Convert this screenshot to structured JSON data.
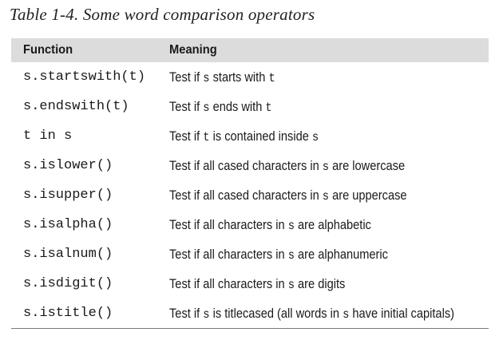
{
  "caption": "Table 1-4. Some word comparison operators",
  "table": {
    "headers": {
      "function": "Function",
      "meaning": "Meaning"
    },
    "rows": [
      {
        "function": "s.startswith(t)",
        "meaning": [
          {
            "t": "Test if "
          },
          {
            "c": "s"
          },
          {
            "t": " starts with "
          },
          {
            "c": "t"
          }
        ]
      },
      {
        "function": "s.endswith(t)",
        "meaning": [
          {
            "t": "Test if "
          },
          {
            "c": "s"
          },
          {
            "t": " ends with "
          },
          {
            "c": "t"
          }
        ]
      },
      {
        "function": "t in s",
        "meaning": [
          {
            "t": "Test if "
          },
          {
            "c": "t"
          },
          {
            "t": " is contained inside "
          },
          {
            "c": "s"
          }
        ]
      },
      {
        "function": "s.islower()",
        "meaning": [
          {
            "t": "Test if all cased characters in "
          },
          {
            "c": "s"
          },
          {
            "t": " are lowercase"
          }
        ]
      },
      {
        "function": "s.isupper()",
        "meaning": [
          {
            "t": "Test if all cased characters in "
          },
          {
            "c": "s"
          },
          {
            "t": " are uppercase"
          }
        ]
      },
      {
        "function": "s.isalpha()",
        "meaning": [
          {
            "t": "Test if all characters in "
          },
          {
            "c": "s"
          },
          {
            "t": " are alphabetic"
          }
        ]
      },
      {
        "function": "s.isalnum()",
        "meaning": [
          {
            "t": "Test if all characters in "
          },
          {
            "c": "s"
          },
          {
            "t": " are alphanumeric"
          }
        ]
      },
      {
        "function": "s.isdigit()",
        "meaning": [
          {
            "t": "Test if all characters in "
          },
          {
            "c": "s"
          },
          {
            "t": " are digits"
          }
        ]
      },
      {
        "function": "s.istitle()",
        "meaning": [
          {
            "t": "Test if "
          },
          {
            "c": "s"
          },
          {
            "t": " is titlecased (all words in "
          },
          {
            "c": "s"
          },
          {
            "t": " have initial capitals)"
          }
        ]
      }
    ]
  },
  "colors": {
    "header_background": "#dcdcdc",
    "rule": "#7a7a7a",
    "text": "#1a1a1a"
  }
}
